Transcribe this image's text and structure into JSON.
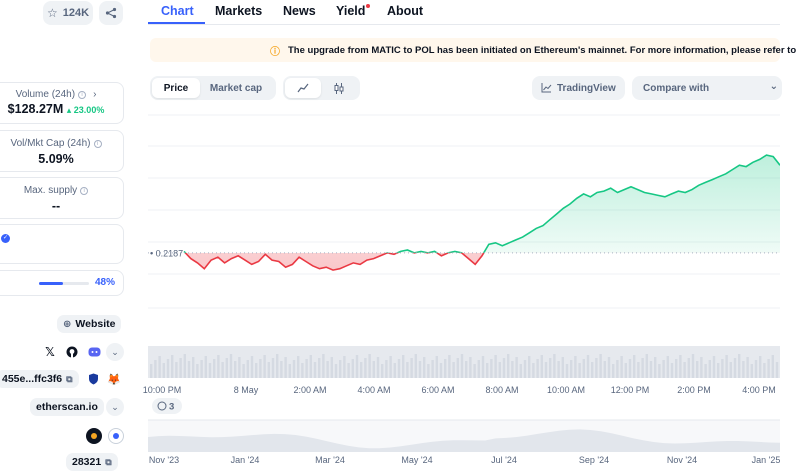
{
  "sidebar": {
    "favorite_count": "124K",
    "volume": {
      "label": "Volume (24h)",
      "value": "$128.27M",
      "change": "23.00%"
    },
    "vol_mkt_cap": {
      "label": "Vol/Mkt Cap (24h)",
      "value": "5.09%"
    },
    "max_supply": {
      "label": "Max. supply",
      "value": "--"
    },
    "progress": {
      "percent_label": "48%",
      "fraction": 0.48
    },
    "website_label": "Website",
    "contract_label": "455e...ffc3f6",
    "explorer_label": "etherscan.io",
    "holders_count": "28321"
  },
  "nav": {
    "tabs": [
      "Chart",
      "Markets",
      "News",
      "Yield",
      "About"
    ],
    "active_tab": "Chart"
  },
  "banner": {
    "text": "The upgrade from MATIC to POL has been initiated on Ethereum's mainnet. For more information, please refer to"
  },
  "controls": {
    "price_label": "Price",
    "market_cap_label": "Market cap",
    "tradingview_label": "TradingView",
    "compare_label": "Compare with"
  },
  "chart_data": {
    "type": "area",
    "baseline_label": "0.2187",
    "baseline": 0.2187,
    "x_tick_labels": [
      "10:00 PM",
      "8 May",
      "2:00 AM",
      "4:00 AM",
      "6:00 AM",
      "8:00 AM",
      "10:00 AM",
      "12:00 PM",
      "2:00 PM",
      "4:00 PM"
    ],
    "nav_tick_labels": [
      "Nov '23",
      "Jan '24",
      "Mar '24",
      "May '24",
      "Jul '24",
      "Sep '24",
      "Nov '24",
      "Jan '25"
    ],
    "events_count": "3",
    "colors": {
      "up": "#16c784",
      "down": "#ea3943"
    },
    "values": [
      0.2188,
      0.2183,
      0.218,
      0.2176,
      0.2182,
      0.2184,
      0.218,
      0.2183,
      0.2185,
      0.2182,
      0.2179,
      0.2181,
      0.2186,
      0.2182,
      0.2181,
      0.2177,
      0.2179,
      0.2184,
      0.2181,
      0.2178,
      0.2176,
      0.2177,
      0.2175,
      0.2176,
      0.2178,
      0.218,
      0.2179,
      0.2182,
      0.2183,
      0.2185,
      0.2187,
      0.2186,
      0.2188,
      0.2189,
      0.2187,
      0.2188,
      0.2187,
      0.2188,
      0.2185,
      0.2187,
      0.2188,
      0.2187,
      0.2183,
      0.2179,
      0.2185,
      0.2193,
      0.2194,
      0.2192,
      0.2194,
      0.2196,
      0.2198,
      0.2201,
      0.2204,
      0.2206,
      0.221,
      0.2214,
      0.2218,
      0.2221,
      0.2225,
      0.2228,
      0.2226,
      0.2229,
      0.223,
      0.2232,
      0.2229,
      0.2231,
      0.2233,
      0.2231,
      0.2229,
      0.2228,
      0.2227,
      0.2226,
      0.2228,
      0.223,
      0.2229,
      0.2231,
      0.2234,
      0.2236,
      0.2238,
      0.224,
      0.2242,
      0.2245,
      0.2248,
      0.2247,
      0.225,
      0.2252,
      0.2255,
      0.2254,
      0.2248
    ]
  }
}
